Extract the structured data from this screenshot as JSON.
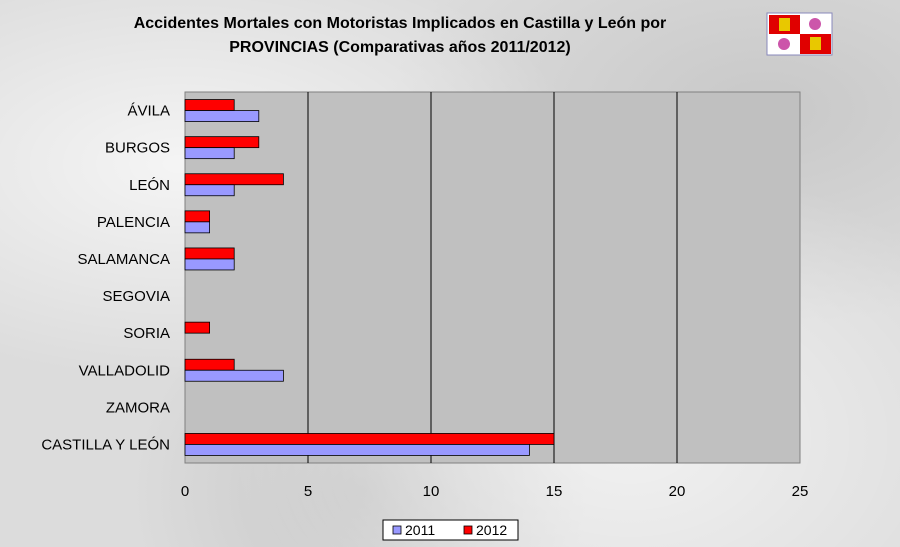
{
  "chart_data": {
    "type": "bar",
    "orientation": "horizontal",
    "title_line1": "Accidentes Mortales con Motoristas Implicados en Castilla y León por",
    "title_line2": "PROVINCIAS (Comparativas años 2011/2012)",
    "categories": [
      "ÁVILA",
      "BURGOS",
      "LEÓN",
      "PALENCIA",
      "SALAMANCA",
      "SEGOVIA",
      "SORIA",
      "VALLADOLID",
      "ZAMORA",
      "CASTILLA Y LEÓN"
    ],
    "series": [
      {
        "name": "2011",
        "color": "#9999ff",
        "values": [
          3,
          2,
          2,
          1,
          2,
          0,
          0,
          4,
          0,
          14
        ]
      },
      {
        "name": "2012",
        "color": "#ff0000",
        "values": [
          2,
          3,
          4,
          1,
          2,
          0,
          1,
          2,
          0,
          15
        ]
      }
    ],
    "xlim": [
      0,
      25
    ],
    "xticks": [
      0,
      5,
      10,
      15,
      20,
      25
    ],
    "grid": true,
    "legend": "bottom",
    "plot_bg": "#c0c0c0"
  }
}
